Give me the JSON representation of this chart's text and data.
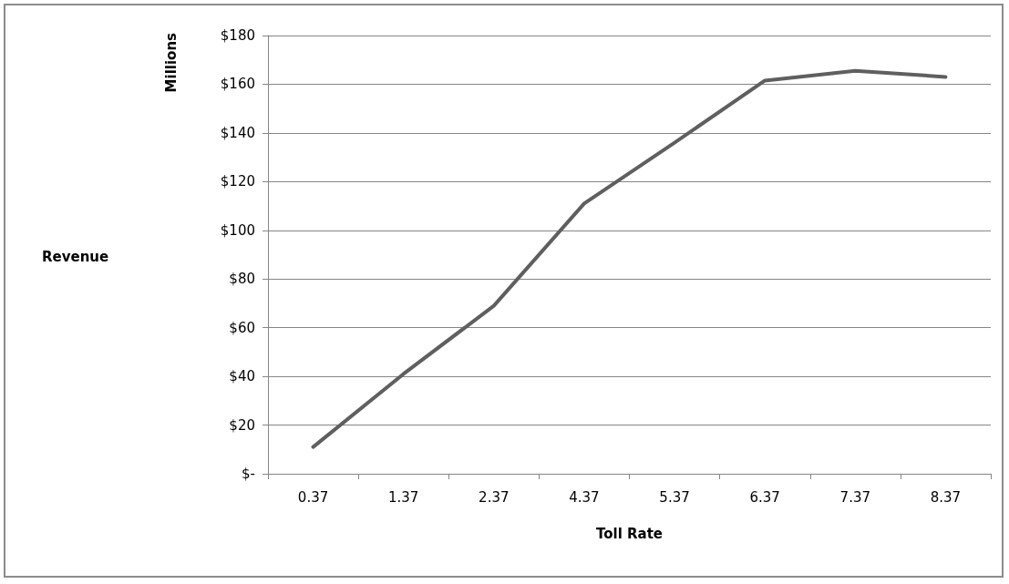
{
  "chart_data": {
    "type": "line",
    "xlabel": "Toll Rate",
    "annotations": [
      "Millions",
      "Revenue"
    ],
    "categories": [
      "0.37",
      "1.37",
      "2.37",
      "4.37",
      "5.37",
      "6.37",
      "7.37",
      "8.37"
    ],
    "series": [
      {
        "color": "#5f5f5f",
        "values": [
          11,
          41,
          69,
          111,
          136,
          161.5,
          165.5,
          163
        ]
      }
    ],
    "ylim": [
      0,
      180
    ],
    "yticks": [
      {
        "value": 0,
        "label": "$-"
      },
      {
        "value": 20,
        "label": "$20"
      },
      {
        "value": 40,
        "label": "$40"
      },
      {
        "value": 60,
        "label": "$60"
      },
      {
        "value": 80,
        "label": "$80"
      },
      {
        "value": 100,
        "label": "$100"
      },
      {
        "value": 120,
        "label": "$120"
      },
      {
        "value": 140,
        "label": "$140"
      },
      {
        "value": 160,
        "label": "$160"
      },
      {
        "value": 180,
        "label": "$180"
      }
    ],
    "grid": "y",
    "marker": "none",
    "line_style": "solid"
  }
}
